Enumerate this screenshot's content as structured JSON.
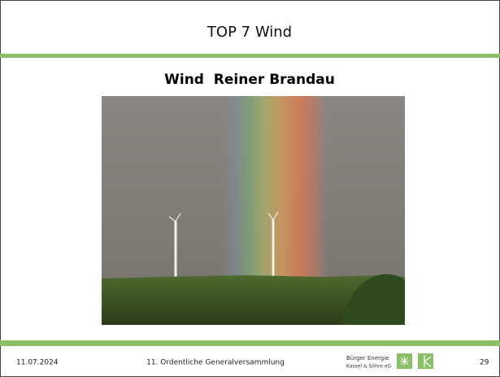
{
  "header": {
    "title": "TOP 7 Wind"
  },
  "subtitle": "Wind  Reiner Brandau",
  "footer": {
    "date": "11.07.2024",
    "event": "11. Ordentliche Generalversammlung",
    "logo_line1": "Bürger Energie",
    "logo_line2": "Kassel & Söhre eG",
    "page": "29"
  }
}
